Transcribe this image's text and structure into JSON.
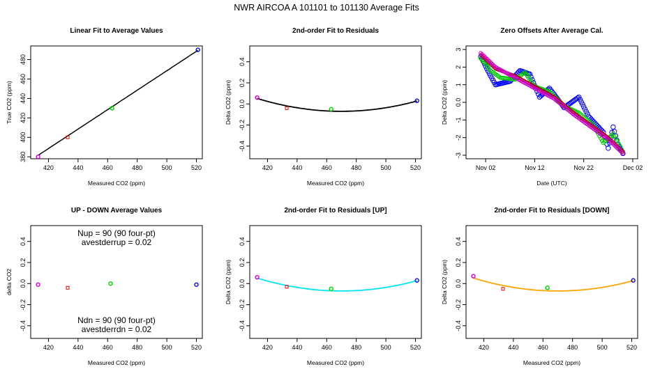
{
  "title": "NWR   AIRCOA A   101101 to 101130   Average Fits",
  "colors": {
    "purple": "#cc00cc",
    "red": "#e00000",
    "green": "#00cc00",
    "blue": "#0000ff",
    "black": "#000000",
    "cyan": "#00e5ee",
    "orange": "#ffa500",
    "darkred": "#aa0000"
  },
  "chart_data": [
    {
      "type": "scatter",
      "title": "Linear Fit to Average Values",
      "xlabel": "Measured CO2 (ppm)",
      "ylabel": "True CO2 (ppm)",
      "xlim": [
        408,
        524
      ],
      "ylim": [
        378,
        494
      ],
      "xticks": [
        420,
        440,
        460,
        480,
        500,
        520
      ],
      "yticks": [
        380,
        400,
        420,
        440,
        460,
        480
      ],
      "points": [
        {
          "x": 413,
          "y": 380,
          "color": "purple"
        },
        {
          "x": 433,
          "y": 400,
          "color": "red"
        },
        {
          "x": 463,
          "y": 430,
          "color": "green"
        },
        {
          "x": 521,
          "y": 490,
          "color": "blue"
        }
      ],
      "fit": {
        "kind": "linear",
        "coef": [
          -31.5,
          1.0
        ],
        "xrange": [
          413,
          521
        ],
        "color": "black"
      }
    },
    {
      "type": "scatter",
      "title": "2nd-order Fit to Residuals",
      "xlabel": "Measured CO2 (ppm)",
      "ylabel": "Delta CO2 (ppm)",
      "xlim": [
        408,
        524
      ],
      "ylim": [
        -0.52,
        0.55
      ],
      "xticks": [
        420,
        440,
        460,
        480,
        500,
        520
      ],
      "yticks": [
        -0.4,
        -0.2,
        0.0,
        0.2,
        0.4
      ],
      "points": [
        {
          "x": 413,
          "y": 0.06,
          "color": "purple"
        },
        {
          "x": 433,
          "y": -0.04,
          "color": "red"
        },
        {
          "x": 463,
          "y": -0.05,
          "color": "green"
        },
        {
          "x": 521,
          "y": 0.03,
          "color": "blue"
        }
      ],
      "fit": {
        "kind": "quadratic",
        "vertex": [
          470,
          -0.07
        ],
        "a": 3.76e-05,
        "xrange": [
          413,
          521
        ],
        "color": "black"
      }
    },
    {
      "type": "line",
      "title": "Zero Offsets After Average Cal.",
      "xlabel": "Date (UTC)",
      "ylabel": "Delta CO2 (ppm)",
      "xlim": [
        "2010-10-29",
        "2010-12-03"
      ],
      "ylim": [
        -3.2,
        3.2
      ],
      "xticks": [
        "Nov 02",
        "Nov 12",
        "Nov 22",
        "Dec 02"
      ],
      "xtick_dates": [
        "2010-11-02",
        "2010-11-12",
        "2010-11-22",
        "2010-12-02"
      ],
      "yticks": [
        -3,
        -2,
        -1,
        0,
        1,
        2,
        3
      ],
      "series": [
        {
          "color": "blue",
          "x": [
            "2010-11-01",
            "2010-11-03",
            "2010-11-04",
            "2010-11-07",
            "2010-11-09",
            "2010-11-11",
            "2010-11-13",
            "2010-11-15",
            "2010-11-18",
            "2010-11-21",
            "2010-11-23",
            "2010-11-25",
            "2010-11-26",
            "2010-11-27",
            "2010-11-28",
            "2010-11-29",
            "2010-11-30"
          ],
          "y": [
            2.6,
            1.5,
            1.0,
            1.2,
            1.8,
            1.6,
            0.3,
            0.8,
            -0.3,
            0.3,
            -0.8,
            -1.4,
            -1.7,
            -2.6,
            -1.4,
            -2.4,
            -2.9
          ]
        },
        {
          "color": "green",
          "x": [
            "2010-11-01",
            "2010-11-03",
            "2010-11-05",
            "2010-11-08",
            "2010-11-10",
            "2010-11-12",
            "2010-11-15",
            "2010-11-18",
            "2010-11-21",
            "2010-11-24",
            "2010-11-26",
            "2010-11-28",
            "2010-11-30"
          ],
          "y": [
            2.5,
            1.8,
            1.4,
            1.3,
            1.7,
            0.9,
            0.6,
            -0.2,
            -0.6,
            -1.3,
            -2.3,
            -1.8,
            -2.8
          ]
        },
        {
          "color": "darkred",
          "x": [
            "2010-11-01",
            "2010-11-04",
            "2010-11-08",
            "2010-11-12",
            "2010-11-16",
            "2010-11-20",
            "2010-11-24",
            "2010-11-27",
            "2010-11-30"
          ],
          "y": [
            2.7,
            1.9,
            1.5,
            0.9,
            0.3,
            -0.6,
            -1.4,
            -2.0,
            -2.8
          ]
        },
        {
          "color": "purple",
          "x": [
            "2010-11-01",
            "2010-11-04",
            "2010-11-08",
            "2010-11-12",
            "2010-11-16",
            "2010-11-20",
            "2010-11-24",
            "2010-11-27",
            "2010-11-30"
          ],
          "y": [
            2.8,
            2.0,
            1.4,
            0.8,
            0.2,
            -0.7,
            -1.5,
            -2.1,
            -2.9
          ]
        }
      ]
    },
    {
      "type": "scatter",
      "title": "UP - DOWN Average Values",
      "xlabel": "Measured CO2 (ppm)",
      "ylabel": "delta CO2",
      "xlim": [
        408,
        524
      ],
      "ylim": [
        -0.52,
        0.55
      ],
      "xticks": [
        420,
        440,
        460,
        480,
        500,
        520
      ],
      "yticks": [
        -0.4,
        -0.2,
        0.0,
        0.2,
        0.4
      ],
      "points": [
        {
          "x": 413,
          "y": -0.01,
          "color": "purple"
        },
        {
          "x": 433,
          "y": -0.04,
          "color": "red"
        },
        {
          "x": 462,
          "y": 0.0,
          "color": "green"
        },
        {
          "x": 520,
          "y": -0.01,
          "color": "blue"
        }
      ],
      "annotations": [
        "Nup = 90 (90 four-pt)",
        "avestderrup =  0.02",
        "Ndn = 90 (90 four-pt)",
        "avestderrdn =  0.02"
      ]
    },
    {
      "type": "scatter",
      "title": "2nd-order Fit to Residuals [UP]",
      "xlabel": "Measured CO2 (ppm)",
      "ylabel": "Delta CO2 (ppm)",
      "xlim": [
        408,
        524
      ],
      "ylim": [
        -0.52,
        0.55
      ],
      "xticks": [
        420,
        440,
        460,
        480,
        500,
        520
      ],
      "yticks": [
        -0.4,
        -0.2,
        0.0,
        0.2,
        0.4
      ],
      "points": [
        {
          "x": 413,
          "y": 0.06,
          "color": "purple"
        },
        {
          "x": 433,
          "y": -0.03,
          "color": "red"
        },
        {
          "x": 463,
          "y": -0.05,
          "color": "green"
        },
        {
          "x": 521,
          "y": 0.03,
          "color": "blue"
        }
      ],
      "fit": {
        "kind": "quadratic",
        "vertex": [
          470,
          -0.07
        ],
        "a": 3.76e-05,
        "xrange": [
          413,
          521
        ],
        "color": "cyan"
      }
    },
    {
      "type": "scatter",
      "title": "2nd-order Fit to Residuals [DOWN]",
      "xlabel": "Measured CO2 (ppm)",
      "ylabel": "Delta CO2 (ppm)",
      "xlim": [
        408,
        524
      ],
      "ylim": [
        -0.52,
        0.55
      ],
      "xticks": [
        420,
        440,
        460,
        480,
        500,
        520
      ],
      "yticks": [
        -0.4,
        -0.2,
        0.0,
        0.2,
        0.4
      ],
      "points": [
        {
          "x": 413,
          "y": 0.07,
          "color": "purple"
        },
        {
          "x": 433,
          "y": -0.05,
          "color": "red"
        },
        {
          "x": 463,
          "y": -0.04,
          "color": "green"
        },
        {
          "x": 521,
          "y": 0.03,
          "color": "blue"
        }
      ],
      "fit": {
        "kind": "quadratic",
        "vertex": [
          470,
          -0.07
        ],
        "a": 3.76e-05,
        "xrange": [
          413,
          521
        ],
        "color": "orange"
      }
    }
  ]
}
